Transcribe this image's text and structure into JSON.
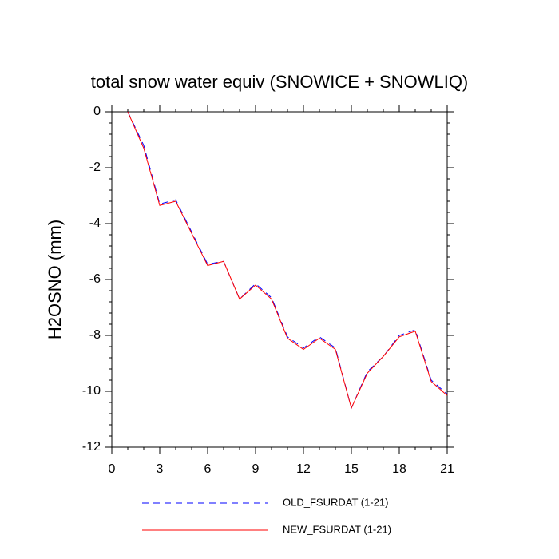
{
  "chart_data": {
    "type": "line",
    "title": "total snow water equiv (SNOWICE + SNOWLIQ)",
    "xlabel": "",
    "ylabel": "H2OSNO  (mm)",
    "xlim": [
      0,
      21
    ],
    "ylim": [
      -12,
      0
    ],
    "xticks": [
      0,
      3,
      6,
      9,
      12,
      15,
      18,
      21
    ],
    "yticks": [
      0,
      -2,
      -4,
      -6,
      -8,
      -10,
      -12
    ],
    "grid": false,
    "legend": "bottom",
    "x": [
      1,
      2,
      3,
      4,
      5,
      6,
      7,
      8,
      9,
      10,
      11,
      12,
      13,
      14,
      15,
      16,
      17,
      18,
      19,
      20,
      21
    ],
    "series": [
      {
        "name": "OLD_FSURDAT (1-21)",
        "color": "#0000ff",
        "dash": "dashed",
        "values": [
          0.0,
          -1.2,
          -3.3,
          -3.15,
          -4.3,
          -5.45,
          -5.35,
          -6.7,
          -6.15,
          -6.65,
          -8.05,
          -8.45,
          -8.05,
          -8.45,
          -10.6,
          -9.3,
          -8.75,
          -8.0,
          -7.8,
          -9.6,
          -10.1
        ]
      },
      {
        "name": "NEW_FSURDAT (1-21)",
        "color": "#ff0000",
        "dash": "solid",
        "values": [
          0.0,
          -1.3,
          -3.35,
          -3.2,
          -4.35,
          -5.5,
          -5.35,
          -6.7,
          -6.2,
          -6.7,
          -8.1,
          -8.5,
          -8.1,
          -8.5,
          -10.6,
          -9.35,
          -8.75,
          -8.05,
          -7.85,
          -9.65,
          -10.15
        ]
      }
    ]
  }
}
